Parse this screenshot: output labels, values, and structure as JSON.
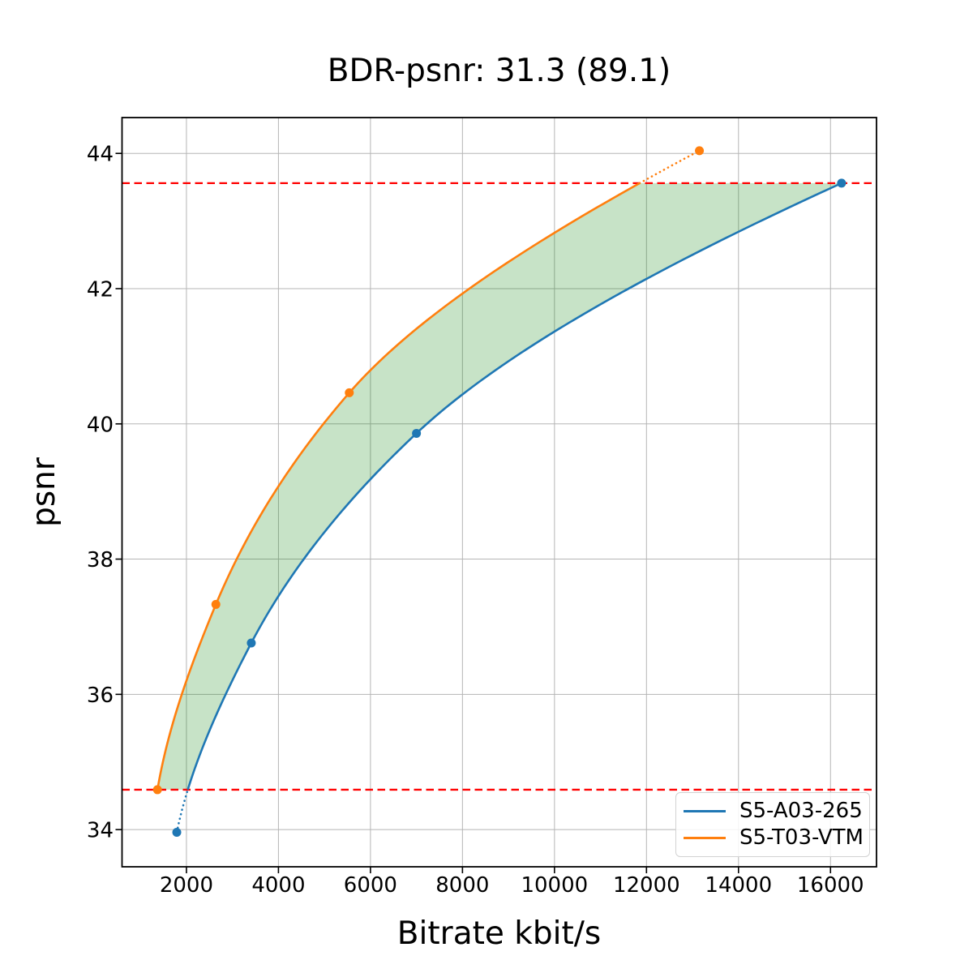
{
  "chart_data": {
    "type": "line",
    "title": "BDR-psnr: 31.3 (89.1)",
    "xlabel": "Bitrate kbit/s",
    "ylabel": "psnr",
    "xlim": [
      600,
      17000
    ],
    "ylim": [
      33.45,
      44.53
    ],
    "xticks": [
      2000,
      4000,
      6000,
      8000,
      10000,
      12000,
      14000,
      16000
    ],
    "yticks": [
      34,
      36,
      38,
      40,
      42,
      44
    ],
    "grid": true,
    "grid_color": "#b5b5b5",
    "legend_position": "lower right",
    "series": [
      {
        "name": "S5-A03-265",
        "color": "#1f77b4",
        "points": [
          [
            1790,
            33.96
          ],
          [
            3410,
            36.76
          ],
          [
            7000,
            39.86
          ],
          [
            16240,
            43.56
          ]
        ]
      },
      {
        "name": "S5-T03-VTM",
        "color": "#ff7f0e",
        "points": [
          [
            1370,
            34.59
          ],
          [
            2640,
            37.33
          ],
          [
            5540,
            40.46
          ],
          [
            13150,
            44.04
          ]
        ]
      }
    ],
    "overlap_band": {
      "psnr_low": 34.59,
      "psnr_high": 43.56,
      "line_color": "#ff0000",
      "line_style": "dashed",
      "fill_color": "rgba(0,128,0,0.22)"
    }
  }
}
